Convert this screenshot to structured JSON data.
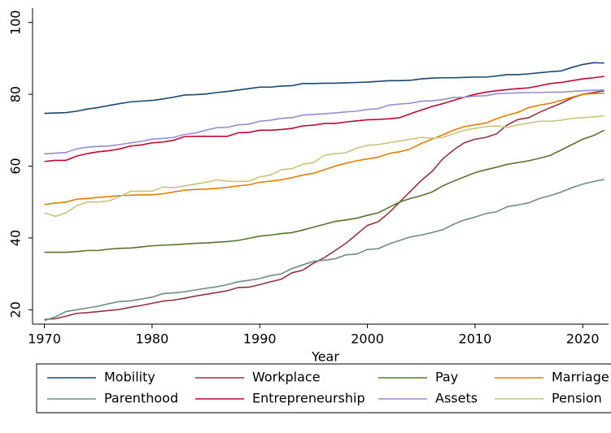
{
  "chart_data": {
    "type": "line",
    "x_label": "Year",
    "x": [
      1970,
      1971,
      1972,
      1973,
      1974,
      1975,
      1976,
      1977,
      1978,
      1979,
      1980,
      1981,
      1982,
      1983,
      1984,
      1985,
      1986,
      1987,
      1988,
      1989,
      1990,
      1991,
      1992,
      1993,
      1994,
      1995,
      1996,
      1997,
      1998,
      1999,
      2000,
      2001,
      2002,
      2003,
      2004,
      2005,
      2006,
      2007,
      2008,
      2009,
      2010,
      2011,
      2012,
      2013,
      2014,
      2015,
      2016,
      2017,
      2018,
      2019,
      2020,
      2021,
      2022
    ],
    "xlim": [
      1968.9,
      2022.4
    ],
    "xticks": [
      1970,
      1980,
      1990,
      2000,
      2010,
      2020
    ],
    "ylim": [
      16,
      104
    ],
    "yticks": [
      20,
      40,
      60,
      80,
      100
    ],
    "grid": false,
    "series": [
      {
        "name": "Mobility",
        "color": "#1a476f",
        "values": [
          74.7,
          74.8,
          74.9,
          75.3,
          75.9,
          76.3,
          76.9,
          77.4,
          77.9,
          78.1,
          78.3,
          78.7,
          79.2,
          79.8,
          79.9,
          80.1,
          80.5,
          80.8,
          81.2,
          81.6,
          82.0,
          82.0,
          82.3,
          82.4,
          83.0,
          83.0,
          83.1,
          83.1,
          83.2,
          83.3,
          83.4,
          83.6,
          83.8,
          83.8,
          83.9,
          84.3,
          84.5,
          84.6,
          84.6,
          84.7,
          84.8,
          84.8,
          85.1,
          85.5,
          85.5,
          85.7,
          86.0,
          86.3,
          86.5,
          87.5,
          88.3,
          88.8,
          88.7
        ]
      },
      {
        "name": "Workplace",
        "color": "#90353b",
        "values": [
          17.3,
          17.5,
          18.2,
          19.0,
          19.2,
          19.5,
          19.8,
          20.1,
          20.7,
          21.2,
          21.8,
          22.4,
          22.7,
          23.2,
          23.8,
          24.3,
          24.8,
          25.3,
          26.2,
          26.3,
          27.0,
          27.8,
          28.5,
          30.3,
          31.0,
          33.0,
          34.5,
          36.5,
          38.5,
          41.0,
          43.5,
          44.5,
          47.0,
          50.0,
          53.0,
          56.0,
          58.5,
          62.0,
          64.5,
          66.5,
          67.5,
          68.0,
          69.0,
          71.5,
          73.0,
          73.5,
          75.0,
          76.3,
          77.5,
          79.0,
          80.0,
          80.5,
          81.0
        ]
      },
      {
        "name": "Pay",
        "color": "#55752f",
        "values": [
          36.0,
          36.0,
          36.0,
          36.2,
          36.5,
          36.5,
          36.9,
          37.1,
          37.2,
          37.5,
          37.8,
          38.0,
          38.1,
          38.3,
          38.5,
          38.6,
          38.8,
          39.0,
          39.3,
          39.9,
          40.5,
          40.8,
          41.2,
          41.5,
          42.2,
          43.0,
          43.8,
          44.6,
          45.0,
          45.5,
          46.3,
          47.0,
          48.5,
          50.0,
          51.0,
          51.8,
          52.8,
          54.5,
          55.8,
          57.0,
          58.2,
          59.0,
          59.7,
          60.5,
          61.0,
          61.5,
          62.2,
          63.0,
          64.5,
          66.0,
          67.5,
          68.5,
          70.0
        ]
      },
      {
        "name": "Marriage",
        "color": "#e37e00",
        "values": [
          49.3,
          49.7,
          50.0,
          50.8,
          51.0,
          51.3,
          51.5,
          51.8,
          51.9,
          52.0,
          52.0,
          52.3,
          52.8,
          53.3,
          53.5,
          53.6,
          53.8,
          54.1,
          54.5,
          54.8,
          55.5,
          55.8,
          56.2,
          56.8,
          57.5,
          58.0,
          59.0,
          60.0,
          60.8,
          61.5,
          62.0,
          62.5,
          63.5,
          64.0,
          64.8,
          66.3,
          67.5,
          68.7,
          70.0,
          71.0,
          71.5,
          72.0,
          73.2,
          74.2,
          75.0,
          76.3,
          77.0,
          77.5,
          78.3,
          79.2,
          80.0,
          80.2,
          80.3
        ]
      },
      {
        "name": "Parenthood",
        "color": "#6e8e84",
        "values": [
          17.0,
          18.0,
          19.5,
          20.0,
          20.5,
          21.0,
          21.7,
          22.3,
          22.5,
          23.0,
          23.5,
          24.5,
          24.7,
          25.0,
          25.5,
          26.0,
          26.4,
          27.0,
          27.8,
          28.2,
          28.7,
          29.5,
          30.0,
          31.5,
          32.5,
          33.5,
          33.8,
          34.2,
          35.3,
          35.5,
          36.8,
          37.0,
          38.3,
          39.3,
          40.3,
          40.8,
          41.5,
          42.3,
          43.8,
          45.0,
          45.8,
          46.8,
          47.3,
          48.7,
          49.2,
          49.8,
          51.0,
          51.8,
          52.8,
          54.0,
          55.0,
          55.7,
          56.3
        ]
      },
      {
        "name": "Entrepreneurship",
        "color": "#c10534",
        "values": [
          61.3,
          61.6,
          61.6,
          62.8,
          63.5,
          64.0,
          64.3,
          64.8,
          65.6,
          65.9,
          66.5,
          66.7,
          67.2,
          68.2,
          68.3,
          68.3,
          68.3,
          68.3,
          69.3,
          69.4,
          70.0,
          70.0,
          70.2,
          70.5,
          71.2,
          71.4,
          71.9,
          71.9,
          72.3,
          72.6,
          72.9,
          73.0,
          73.2,
          73.5,
          74.6,
          75.6,
          76.6,
          77.4,
          78.3,
          79.2,
          80.0,
          80.6,
          81.0,
          81.3,
          81.6,
          81.8,
          82.4,
          83.0,
          83.3,
          83.8,
          84.3,
          84.6,
          85.0
        ]
      },
      {
        "name": "Assets",
        "color": "#938dd2",
        "values": [
          63.4,
          63.6,
          63.8,
          64.8,
          65.3,
          65.5,
          65.6,
          66.0,
          66.5,
          66.9,
          67.5,
          67.7,
          68.0,
          68.8,
          69.2,
          70.0,
          70.7,
          70.8,
          71.5,
          71.7,
          72.5,
          72.8,
          73.3,
          73.5,
          74.2,
          74.4,
          74.6,
          74.8,
          75.1,
          75.3,
          75.8,
          76.0,
          77.0,
          77.3,
          77.5,
          78.1,
          78.2,
          78.5,
          79.1,
          79.2,
          79.5,
          79.6,
          80.2,
          80.3,
          80.4,
          80.5,
          80.5,
          80.6,
          80.6,
          80.8,
          81.0,
          81.1,
          81.2
        ]
      },
      {
        "name": "Pension",
        "color": "#cac27e",
        "values": [
          47.0,
          46.0,
          47.0,
          49.0,
          50.0,
          50.0,
          50.3,
          51.5,
          53.0,
          53.0,
          53.0,
          54.2,
          54.0,
          54.5,
          55.0,
          55.5,
          56.2,
          55.8,
          55.7,
          55.8,
          57.0,
          57.5,
          59.0,
          59.3,
          60.5,
          61.0,
          63.0,
          63.5,
          63.7,
          65.0,
          65.8,
          66.0,
          66.5,
          67.0,
          67.5,
          68.0,
          67.8,
          68.0,
          69.0,
          70.0,
          70.5,
          71.0,
          71.2,
          70.8,
          71.5,
          72.0,
          72.5,
          72.5,
          72.8,
          73.3,
          73.5,
          73.7,
          74.0
        ]
      }
    ],
    "legend": "bottom"
  }
}
